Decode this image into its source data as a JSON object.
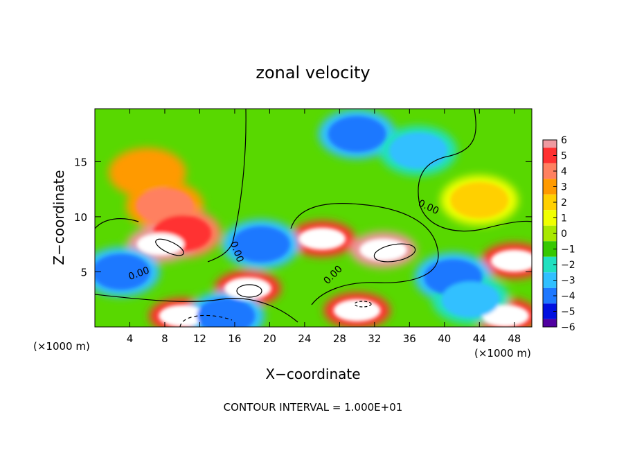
{
  "chart_data": {
    "type": "heatmap",
    "title": "zonal velocity",
    "xlabel": "X−coordinate",
    "ylabel": "Z−coordinate",
    "x_unit": "(×1000 m)",
    "z_unit": "(×1000 m)",
    "xlim": [
      0,
      50
    ],
    "ylim": [
      0,
      19.8
    ],
    "x_ticks": [
      "4",
      "8",
      "12",
      "16",
      "20",
      "24",
      "28",
      "32",
      "36",
      "40",
      "44",
      "48"
    ],
    "y_ticks": [
      "5",
      "10",
      "15"
    ],
    "footer": "CONTOUR INTERVAL = 1.000E+01",
    "colorbar": {
      "range": [
        -6,
        6
      ],
      "labels": [
        "6",
        "5",
        "4",
        "3",
        "2",
        "1",
        "0",
        "−1",
        "−2",
        "−3",
        "−4",
        "−5",
        "−6"
      ],
      "colors": [
        "#ee9aa0",
        "#ff3030",
        "#ff8060",
        "#ff9a00",
        "#ffd000",
        "#f0ff00",
        "#a8e800",
        "#36c800",
        "#20e0c0",
        "#30c0ff",
        "#1e78ff",
        "#0010e0",
        "#5000a0"
      ]
    },
    "contour_labels": [
      "0.00",
      "0.00",
      "0.00",
      "0.00"
    ],
    "features": [
      {
        "x": 6,
        "z": 14,
        "u": 3.5
      },
      {
        "x": 8,
        "z": 11,
        "u": 4.5
      },
      {
        "x": 10,
        "z": 8.5,
        "u": 5.5
      },
      {
        "x": 7.5,
        "z": 7.5,
        "u": 8
      },
      {
        "x": 17.5,
        "z": 3.5,
        "u": 7
      },
      {
        "x": 10,
        "z": 1,
        "u": 7
      },
      {
        "x": 26,
        "z": 8,
        "u": 7
      },
      {
        "x": 33,
        "z": 7,
        "u": 8
      },
      {
        "x": 30,
        "z": 1.5,
        "u": 7
      },
      {
        "x": 48,
        "z": 6,
        "u": 7
      },
      {
        "x": 47,
        "z": 1,
        "u": 7
      },
      {
        "x": 30,
        "z": 17.5,
        "u": -3.5
      },
      {
        "x": 37,
        "z": 16,
        "u": -2.5
      },
      {
        "x": 44,
        "z": 11.5,
        "u": 2
      },
      {
        "x": 3,
        "z": 5,
        "u": -4
      },
      {
        "x": 19,
        "z": 7.5,
        "u": -4
      },
      {
        "x": 41,
        "z": 4.5,
        "u": -4
      },
      {
        "x": 43,
        "z": 2.5,
        "u": -3
      },
      {
        "x": 15,
        "z": 1,
        "u": -4
      }
    ]
  }
}
